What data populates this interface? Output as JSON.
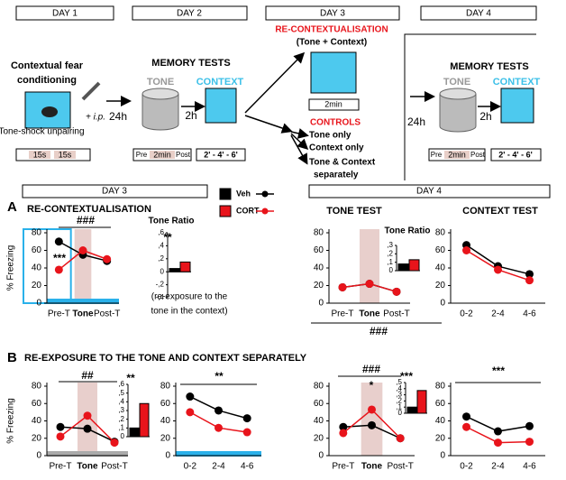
{
  "diagram": {
    "day_1": "DAY 1",
    "day_2": "DAY 2",
    "day_3": "DAY 3",
    "day_4": "DAY 4",
    "conditioning_1": "Contextual fear",
    "conditioning_2": "conditioning",
    "ip": "+ i.p.",
    "delay_1": "24h",
    "unpairing": "Tone-shock unpairing",
    "tone_1": "15s",
    "tone_2": "15s",
    "memory_tests_1": "MEMORY TESTS",
    "tone_label_1": "TONE",
    "context_label_1": "CONTEXT",
    "interval_1": "2h",
    "pre_1": "Pre",
    "min_1": "2min",
    "post_1": "Post",
    "context_times_1": "2' - 4' - 6'",
    "recontext": "RE-CONTEXTUALISATION",
    "recontext_sub": "(Tone + Context)",
    "min_3": "2min",
    "controls": "CONTROLS",
    "control_1": "Tone only",
    "control_2": "Context only",
    "control_3": "Tone & Context",
    "control_3b": "separately",
    "delay_2": "24h",
    "memory_tests_2": "MEMORY TESTS",
    "tone_label_2": "TONE",
    "context_label_2": "CONTEXT",
    "interval_2": "2h",
    "pre_2": "Pre",
    "min_2": "2min",
    "post_2": "Post",
    "context_times_2": "2' - 4' - 6'",
    "results_day_3": "DAY 3",
    "results_day_4": "DAY 4",
    "panel_a": "A",
    "panel_b": "B",
    "panel_b_title": "RE-EXPOSURE TO THE TONE AND CONTEXT SEPARATELY",
    "note_1": "(re-exposure to the",
    "note_2": "tone in the context)"
  },
  "chart_data": [
    {
      "type": "line",
      "title": "RE-CONTEXTUALISATION",
      "y_label": "% Freezing",
      "categories": [
        "Pre-T",
        "Tone",
        "Post-T"
      ],
      "series": [
        {
          "name": "Veh",
          "color": "#000000",
          "values": [
            70,
            55,
            48
          ]
        },
        {
          "name": "CORT",
          "color": "#e8141b",
          "values": [
            38,
            60,
            50
          ]
        }
      ],
      "ylim": [
        0,
        80
      ],
      "yticks": [
        0,
        20,
        40,
        60,
        80
      ],
      "annotations": [
        "***",
        "###"
      ]
    },
    {
      "type": "bar",
      "title": "Tone Ratio",
      "values": [
        0.05,
        0.15
      ],
      "colors": [
        "#000000",
        "#e8141b"
      ],
      "ylim": [
        -0.4,
        0.6
      ],
      "yticks": [
        {
          "value": -0.4,
          "label": "-,4"
        },
        {
          "value": -0.2,
          "label": "-,2"
        },
        0,
        {
          "value": 0.2,
          "label": ",2"
        },
        {
          "value": 0.4,
          "label": ",4"
        },
        {
          "value": 0.6,
          "label": ",6"
        }
      ],
      "annotations": [
        "**"
      ]
    },
    {
      "type": "line",
      "title": "TONE TEST",
      "categories": [
        "Pre-T",
        "Tone",
        "Post-T"
      ],
      "series": [
        {
          "name": "Veh",
          "color": "#000000",
          "values": [
            18,
            22,
            13
          ]
        },
        {
          "name": "CORT",
          "color": "#e8141b",
          "values": [
            18,
            22,
            13
          ]
        }
      ],
      "ylim": [
        0,
        80
      ],
      "yticks": [
        0,
        20,
        40,
        60,
        80
      ],
      "annotations": [
        "###"
      ]
    },
    {
      "type": "bar",
      "title": "Tone Ratio",
      "values": [
        0.08,
        0.13
      ],
      "colors": [
        "#000000",
        "#e8141b"
      ],
      "ylim": [
        0,
        0.3
      ],
      "yticks": [
        0,
        {
          "value": 0.1,
          "label": ",1"
        },
        {
          "value": 0.2,
          "label": ",2"
        },
        {
          "value": 0.3,
          "label": ",3"
        }
      ],
      "annotations": []
    },
    {
      "type": "line",
      "title": "CONTEXT TEST",
      "categories": [
        "0-2",
        "2-4",
        "4-6"
      ],
      "series": [
        {
          "name": "Veh",
          "color": "#000000",
          "values": [
            66,
            42,
            33
          ]
        },
        {
          "name": "CORT",
          "color": "#e8141b",
          "values": [
            60,
            38,
            26
          ]
        }
      ],
      "ylim": [
        0,
        80
      ],
      "yticks": [
        0,
        20,
        40,
        60,
        80
      ],
      "annotations": []
    },
    {
      "type": "line",
      "y_label": "% Freezing",
      "categories": [
        "Pre-T",
        "Tone",
        "Post-T"
      ],
      "series": [
        {
          "name": "Veh",
          "color": "#000000",
          "values": [
            33,
            31,
            16
          ]
        },
        {
          "name": "CORT",
          "color": "#e8141b",
          "values": [
            22,
            46,
            15
          ]
        }
      ],
      "ylim": [
        0,
        80
      ],
      "yticks": [
        0,
        20,
        40,
        60,
        80
      ],
      "annotations": [
        "##"
      ]
    },
    {
      "type": "bar",
      "values": [
        0.1,
        0.38
      ],
      "colors": [
        "#000000",
        "#e8141b"
      ],
      "ylim": [
        0,
        0.6
      ],
      "yticks": [
        0,
        {
          "value": 0.1,
          "label": ",1"
        },
        {
          "value": 0.2,
          "label": ",2"
        },
        {
          "value": 0.3,
          "label": ",3"
        },
        {
          "value": 0.4,
          "label": ",4"
        },
        {
          "value": 0.5,
          "label": ",5"
        },
        {
          "value": 0.6,
          "label": ",6"
        }
      ],
      "annotations": [
        "**"
      ]
    },
    {
      "type": "line",
      "categories": [
        "0-2",
        "2-4",
        "4-6"
      ],
      "series": [
        {
          "name": "Veh",
          "color": "#000000",
          "values": [
            68,
            52,
            43
          ]
        },
        {
          "name": "CORT",
          "color": "#e8141b",
          "values": [
            50,
            32,
            27
          ]
        }
      ],
      "ylim": [
        0,
        80
      ],
      "yticks": [
        0,
        20,
        40,
        60,
        80
      ],
      "annotations": [
        "**"
      ]
    },
    {
      "type": "line",
      "categories": [
        "Pre-T",
        "Tone",
        "Post-T"
      ],
      "series": [
        {
          "name": "Veh",
          "color": "#000000",
          "values": [
            33,
            35,
            20
          ]
        },
        {
          "name": "CORT",
          "color": "#e8141b",
          "values": [
            26,
            53,
            20
          ]
        }
      ],
      "ylim": [
        0,
        80
      ],
      "yticks": [
        0,
        20,
        40,
        60,
        80
      ],
      "annotations": [
        "###",
        "*"
      ]
    },
    {
      "type": "bar",
      "values": [
        0.1,
        0.37
      ],
      "colors": [
        "#000000",
        "#e8141b"
      ],
      "ylim": [
        0,
        0.5
      ],
      "yticks": [
        0,
        {
          "value": 0.1,
          "label": ",1"
        },
        {
          "value": 0.2,
          "label": ",2"
        },
        {
          "value": 0.3,
          "label": ",3"
        },
        {
          "value": 0.4,
          "label": ",4"
        },
        {
          "value": 0.5,
          "label": ",5"
        }
      ],
      "annotations": [
        "***"
      ]
    },
    {
      "type": "line",
      "categories": [
        "0-2",
        "2-4",
        "4-6"
      ],
      "series": [
        {
          "name": "Veh",
          "color": "#000000",
          "values": [
            45,
            28,
            34
          ]
        },
        {
          "name": "CORT",
          "color": "#e8141b",
          "values": [
            33,
            15,
            16
          ]
        }
      ],
      "ylim": [
        0,
        80
      ],
      "yticks": [
        0,
        20,
        40,
        60,
        80
      ],
      "annotations": [
        "***"
      ]
    }
  ]
}
